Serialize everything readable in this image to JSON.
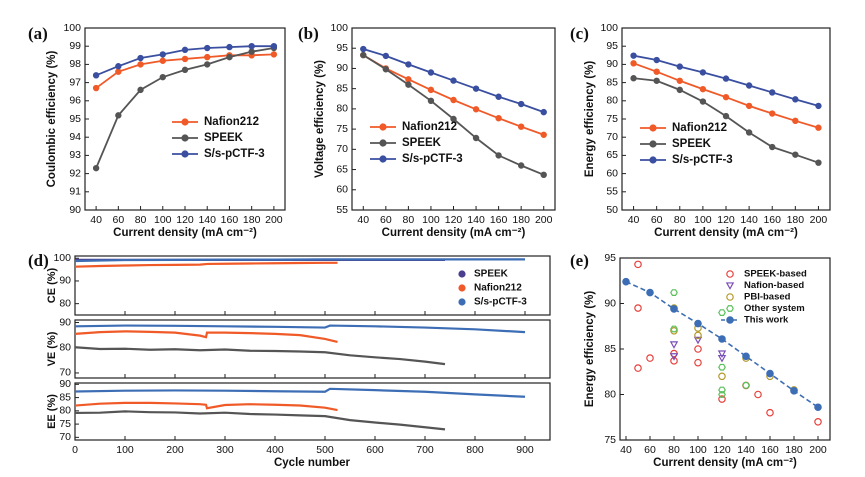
{
  "chart_data": [
    {
      "type": "line",
      "panel": "(a)",
      "xlabel": "Current density (mA cm⁻²)",
      "ylabel": "Coulombic efficiency (%)",
      "x": [
        40,
        60,
        80,
        100,
        120,
        140,
        160,
        180,
        200
      ],
      "xlim": [
        30,
        210
      ],
      "xticks": [
        40,
        60,
        80,
        100,
        120,
        140,
        160,
        180,
        200
      ],
      "ylim": [
        90,
        100
      ],
      "yticks": [
        90,
        91,
        92,
        93,
        94,
        95,
        96,
        97,
        98,
        99,
        100
      ],
      "markers": true,
      "legend": "center right",
      "series": [
        {
          "name": "Nafion212",
          "color": "#f05a28",
          "values": [
            96.7,
            97.6,
            98.0,
            98.2,
            98.3,
            98.4,
            98.5,
            98.5,
            98.55
          ]
        },
        {
          "name": "SPEEK",
          "color": "#555555",
          "values": [
            92.3,
            95.2,
            96.6,
            97.3,
            97.7,
            98.0,
            98.4,
            98.7,
            98.9
          ]
        },
        {
          "name": "S/s-pCTF-3",
          "color": "#3a4fa0",
          "values": [
            97.4,
            97.9,
            98.35,
            98.55,
            98.8,
            98.9,
            98.95,
            99.0,
            99.0
          ]
        }
      ]
    },
    {
      "type": "line",
      "panel": "(b)",
      "xlabel": "Current density (mA cm⁻²)",
      "ylabel": "Voltage efficiency (%)",
      "x": [
        40,
        60,
        80,
        100,
        120,
        140,
        160,
        180,
        200
      ],
      "xlim": [
        30,
        210
      ],
      "xticks": [
        40,
        60,
        80,
        100,
        120,
        140,
        160,
        180,
        200
      ],
      "ylim": [
        55,
        100
      ],
      "yticks": [
        55,
        60,
        65,
        70,
        75,
        80,
        85,
        90,
        95,
        100
      ],
      "markers": true,
      "legend": "center left",
      "series": [
        {
          "name": "Nafion212",
          "color": "#f05a28",
          "values": [
            93.3,
            90.0,
            87.3,
            84.7,
            82.2,
            79.9,
            77.7,
            75.6,
            73.6
          ]
        },
        {
          "name": "SPEEK",
          "color": "#555555",
          "values": [
            93.3,
            89.8,
            86.0,
            82.0,
            77.5,
            72.8,
            68.5,
            66.0,
            63.7
          ]
        },
        {
          "name": "S/s-pCTF-3",
          "color": "#3a4fa0",
          "values": [
            94.8,
            93.1,
            91.0,
            89.0,
            87.0,
            85.0,
            83.0,
            81.2,
            79.2
          ]
        }
      ]
    },
    {
      "type": "line",
      "panel": "(c)",
      "xlabel": "Current density (mA cm⁻²)",
      "ylabel": "Energy efficiency (%)",
      "x": [
        40,
        60,
        80,
        100,
        120,
        140,
        160,
        180,
        200
      ],
      "xlim": [
        30,
        210
      ],
      "xticks": [
        40,
        60,
        80,
        100,
        120,
        140,
        160,
        180,
        200
      ],
      "ylim": [
        50,
        100
      ],
      "yticks": [
        50,
        55,
        60,
        65,
        70,
        75,
        80,
        85,
        90,
        95,
        100
      ],
      "markers": true,
      "legend": "center left",
      "series": [
        {
          "name": "Nafion212",
          "color": "#f05a28",
          "values": [
            90.3,
            88.0,
            85.5,
            83.2,
            81.0,
            78.6,
            76.5,
            74.5,
            72.6
          ]
        },
        {
          "name": "SPEEK",
          "color": "#555555",
          "values": [
            86.2,
            85.5,
            83.0,
            79.8,
            75.8,
            71.3,
            67.3,
            65.2,
            63.0
          ]
        },
        {
          "name": "S/s-pCTF-3",
          "color": "#3a4fa0",
          "values": [
            92.4,
            91.2,
            89.4,
            87.8,
            86.1,
            84.2,
            82.3,
            80.4,
            78.6
          ]
        }
      ]
    },
    {
      "type": "line",
      "panel": "(d)",
      "xlabel": "Cycle number",
      "xlim": [
        0,
        950
      ],
      "xticks": [
        0,
        100,
        200,
        300,
        400,
        500,
        600,
        700,
        800,
        900
      ],
      "markers": false,
      "legend": "upper right",
      "panels": [
        {
          "ylabel": "CE (%)",
          "ylim": [
            75,
            101
          ],
          "yticks": [
            80,
            90,
            100
          ],
          "series": [
            {
              "name": "SPEEK",
              "color": "#4b3f8f",
              "x": [
                0,
                100,
                200,
                300,
                400,
                500,
                600,
                700,
                740
              ],
              "values": [
                99.3,
                99.3,
                99.3,
                99.3,
                99.3,
                99.3,
                99.3,
                99.3,
                99.3
              ]
            },
            {
              "name": "Nafion212",
              "color": "#f05a28",
              "x": [
                0,
                50,
                100,
                150,
                200,
                250,
                265,
                300,
                350,
                400,
                450,
                500,
                525
              ],
              "values": [
                96.3,
                96.6,
                96.8,
                97.0,
                97.1,
                97.2,
                97.5,
                97.6,
                97.7,
                97.8,
                97.9,
                98.0,
                98.0
              ]
            },
            {
              "name": "S/s-pCTF-3",
              "color": "#3d6eb5",
              "x": [
                0,
                100,
                200,
                300,
                400,
                500,
                600,
                700,
                800,
                900
              ],
              "values": [
                98.8,
                99.2,
                99.3,
                99.4,
                99.4,
                99.5,
                99.5,
                99.5,
                99.5,
                99.5
              ]
            }
          ]
        },
        {
          "ylabel": "VE (%)",
          "ylim": [
            68,
            91
          ],
          "yticks": [
            70,
            80,
            90
          ],
          "series": [
            {
              "name": "SPEEK",
              "color": "#555555",
              "x": [
                0,
                50,
                100,
                150,
                200,
                250,
                300,
                350,
                400,
                450,
                500,
                550,
                600,
                650,
                700,
                740
              ],
              "values": [
                80.2,
                79.5,
                79.6,
                79.2,
                79.4,
                79.0,
                79.3,
                78.8,
                78.7,
                78.5,
                78.2,
                77.0,
                76.2,
                75.5,
                74.5,
                73.5
              ]
            },
            {
              "name": "Nafion212",
              "color": "#f05a28",
              "x": [
                0,
                50,
                100,
                150,
                200,
                250,
                262,
                264,
                300,
                350,
                400,
                450,
                500,
                525
              ],
              "values": [
                85.5,
                86.2,
                86.5,
                86.3,
                86.0,
                84.8,
                84.2,
                86.0,
                86.0,
                85.8,
                85.5,
                85.0,
                83.5,
                82.3
              ]
            },
            {
              "name": "S/s-pCTF-3",
              "color": "#3d6eb5",
              "x": [
                0,
                100,
                200,
                300,
                400,
                500,
                510,
                600,
                700,
                800,
                900
              ],
              "values": [
                88.5,
                88.8,
                88.7,
                88.5,
                88.3,
                88.0,
                88.8,
                88.5,
                88.0,
                87.3,
                86.2
              ]
            }
          ]
        },
        {
          "ylabel": "EE (%)",
          "ylim": [
            69,
            90.5
          ],
          "yticks": [
            70,
            75,
            80,
            85,
            90
          ],
          "series": [
            {
              "name": "SPEEK",
              "color": "#555555",
              "x": [
                0,
                50,
                100,
                150,
                200,
                250,
                300,
                350,
                400,
                450,
                500,
                550,
                600,
                650,
                700,
                740
              ],
              "values": [
                79.2,
                79.3,
                79.8,
                79.5,
                79.4,
                79.0,
                79.3,
                78.8,
                78.6,
                78.3,
                78.0,
                76.5,
                75.6,
                74.8,
                73.8,
                73.0
              ]
            },
            {
              "name": "Nafion212",
              "color": "#f05a28",
              "x": [
                0,
                50,
                100,
                150,
                200,
                250,
                262,
                264,
                300,
                350,
                400,
                450,
                500,
                525
              ],
              "values": [
                82.0,
                82.7,
                83.0,
                83.0,
                82.8,
                82.5,
                82.3,
                81.0,
                82.2,
                82.5,
                82.3,
                82.0,
                81.2,
                80.3
              ]
            },
            {
              "name": "S/s-pCTF-3",
              "color": "#3d6eb5",
              "x": [
                0,
                100,
                200,
                300,
                400,
                500,
                510,
                600,
                700,
                800,
                900
              ],
              "values": [
                87.3,
                87.6,
                87.7,
                87.6,
                87.4,
                87.2,
                88.3,
                87.8,
                87.2,
                86.2,
                85.3
              ]
            }
          ]
        }
      ]
    },
    {
      "type": "scatter",
      "panel": "(e)",
      "xlabel": "Current density (mA cm⁻²)",
      "ylabel": "Energy efficiency (%)",
      "xlim": [
        35,
        210
      ],
      "xticks": [
        40,
        60,
        80,
        100,
        120,
        140,
        160,
        180,
        200
      ],
      "ylim": [
        75,
        95
      ],
      "yticks": [
        75,
        80,
        85,
        90,
        95
      ],
      "legend": "upper right",
      "series": [
        {
          "name": "SPEEK-based",
          "color": "#e8413c",
          "marker": "circle",
          "x": [
            50,
            50,
            50,
            60,
            80,
            80,
            100,
            100,
            120,
            140,
            150,
            160,
            200
          ],
          "values": [
            94.3,
            89.5,
            82.9,
            84.0,
            83.7,
            84.5,
            85.0,
            83.5,
            79.5,
            81.0,
            80.0,
            78.0,
            77.0
          ]
        },
        {
          "name": "Nafion-based",
          "color": "#7b4fb8",
          "marker": "triangle",
          "x": [
            80,
            80,
            100,
            120,
            120
          ],
          "values": [
            85.5,
            84.2,
            86.0,
            84.5,
            84.0
          ]
        },
        {
          "name": "PBI-based",
          "color": "#b59a2a",
          "marker": "circle",
          "x": [
            80,
            80,
            100,
            100,
            120,
            140,
            160,
            180
          ],
          "values": [
            89.5,
            87.0,
            87.3,
            86.5,
            82.0,
            84.0,
            82.0,
            80.5
          ]
        },
        {
          "name": "Other system",
          "color": "#5cc15c",
          "marker": "hexagon",
          "x": [
            80,
            80,
            120,
            120,
            120,
            120,
            140
          ],
          "values": [
            91.2,
            87.2,
            89.0,
            83.0,
            80.5,
            80.0,
            81.0
          ]
        },
        {
          "name": "This work",
          "color": "#3d6eb5",
          "marker": "circle",
          "filled": true,
          "line": "dashed",
          "x": [
            40,
            60,
            80,
            100,
            120,
            140,
            160,
            180,
            200
          ],
          "values": [
            92.4,
            91.2,
            89.4,
            87.8,
            86.1,
            84.2,
            82.3,
            80.4,
            78.6
          ]
        }
      ]
    }
  ]
}
